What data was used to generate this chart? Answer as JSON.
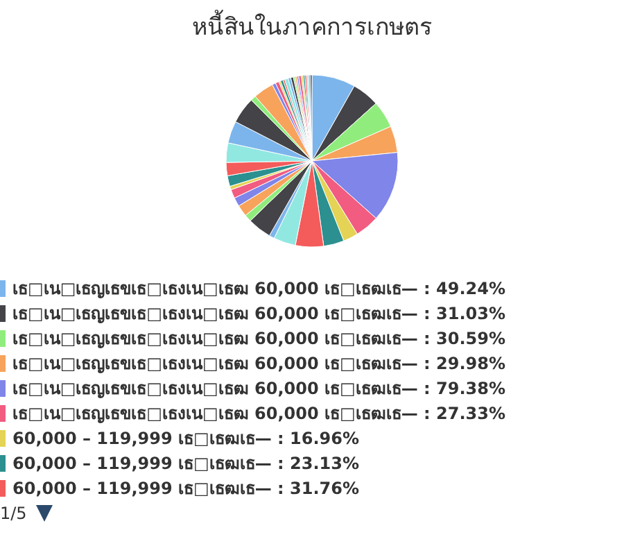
{
  "chart_data": {
    "type": "pie",
    "title": "หนี้สินในภาคการเกษตร",
    "categories": [
      "เธ□เน□เธญเธขเธ□เธงเน□เธฒ 60,000 เธ□เธฒเธ—",
      "เธ□เน□เธญเธขเธ□เธงเน□เธฒ 60,000 เธ□เธฒเธ—",
      "เธ□เน□เธญเธขเธ□เธงเน□เธฒ 60,000 เธ□เธฒเธ—",
      "เธ□เน□เธญเธขเธ□เธงเน□เธฒ 60,000 เธ□เธฒเธ—",
      "เธ□เน□เธญเธขเธ□เธงเน□เธฒ 60,000 เธ□เธฒเธ—",
      "เธ□เน□เธญเธขเธ□เธงเน□เธฒ 60,000 เธ□เธฒเธ—",
      "60,000 – 119,999 เธ□เธฒเธ—",
      "60,000 – 119,999 เธ□เธฒเธ—",
      "60,000 – 119,999 เธ□เธฒเธ—",
      null,
      null,
      null,
      null,
      null,
      null,
      null,
      null,
      null,
      null,
      null,
      null,
      null,
      null,
      null,
      null,
      null,
      null,
      null,
      null,
      null,
      null,
      null,
      null,
      null,
      null,
      null,
      null,
      null,
      null,
      null,
      null,
      null
    ],
    "values": [
      49.24,
      31.03,
      30.59,
      29.98,
      79.38,
      27.33,
      16.96,
      23.13,
      31.76,
      25,
      6,
      27,
      8,
      13,
      10,
      10,
      4,
      12,
      15,
      22,
      25,
      30,
      6,
      23,
      4,
      4,
      2,
      3,
      2,
      4,
      3,
      3,
      2,
      2,
      2,
      3,
      2,
      2,
      2,
      2,
      2,
      2
    ],
    "colors": [
      "#7cb5ec",
      "#434348",
      "#90ed7d",
      "#f7a35c",
      "#8085e9",
      "#f15c80",
      "#e4d354",
      "#2b908f",
      "#f45b5b",
      "#91e8e1",
      "#7cb5ec",
      "#434348",
      "#90ed7d",
      "#f7a35c",
      "#8085e9",
      "#f15c80",
      "#e4d354",
      "#2b908f",
      "#f45b5b",
      "#91e8e1",
      "#7cb5ec",
      "#434348",
      "#90ed7d",
      "#f7a35c",
      "#8085e9",
      "#f15c80",
      "#e4d354",
      "#2b908f",
      "#f45b5b",
      "#91e8e1",
      "#7cb5ec",
      "#434348",
      "#90ed7d",
      "#f7a35c",
      "#8085e9",
      "#f15c80",
      "#e4d354",
      "#2b908f",
      "#f45b5b",
      "#91e8e1",
      "#7cb5ec",
      "#434348"
    ],
    "value_labels": [
      "49.24%",
      "31.03%",
      "30.59%",
      "29.98%",
      "79.38%",
      "27.33%",
      "16.96%",
      "23.13%",
      "31.76%",
      null,
      null,
      null,
      null,
      null,
      null,
      null,
      null,
      null,
      null,
      null,
      null,
      null,
      null,
      null,
      null,
      null,
      null,
      null,
      null,
      null,
      null,
      null,
      null,
      null,
      null,
      null,
      null,
      null,
      null,
      null,
      null,
      null
    ],
    "legend": "bottom",
    "annotations": [
      "1/5"
    ]
  }
}
